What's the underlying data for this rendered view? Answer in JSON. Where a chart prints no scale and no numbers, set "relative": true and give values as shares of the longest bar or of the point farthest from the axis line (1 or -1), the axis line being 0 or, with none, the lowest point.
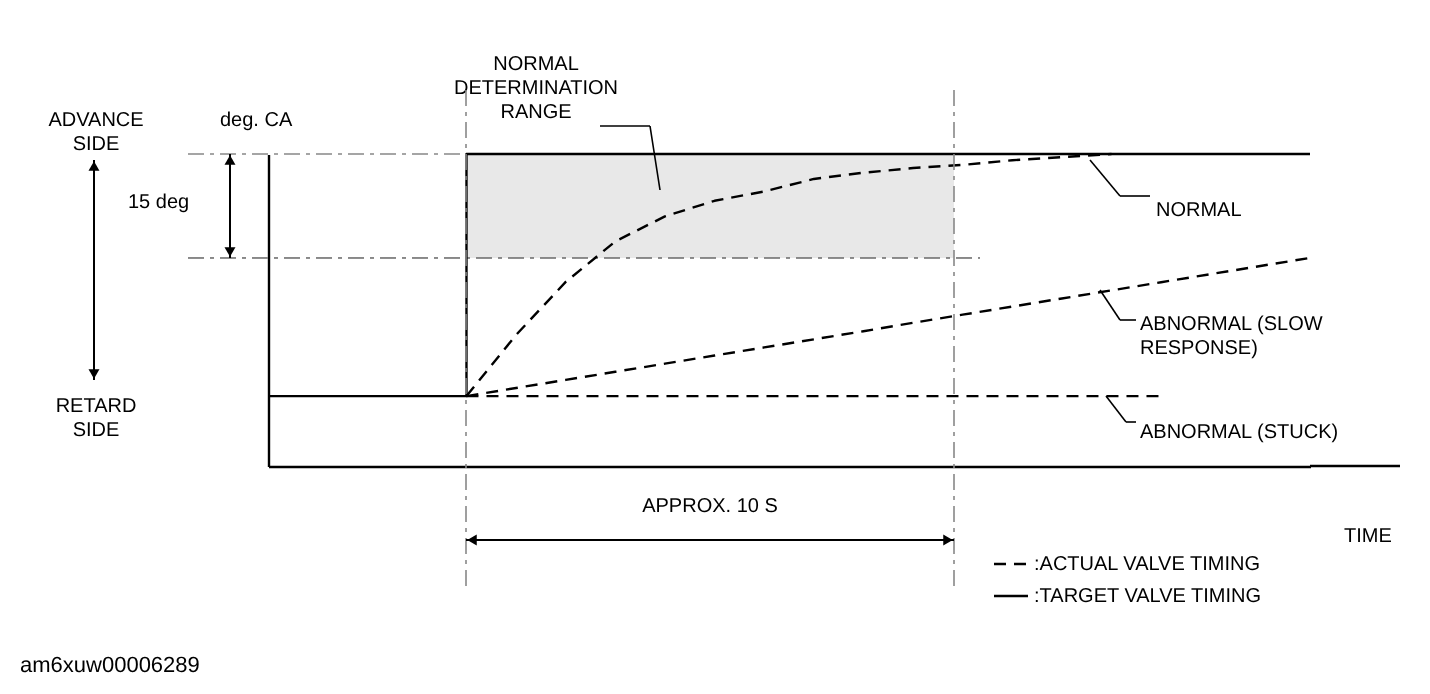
{
  "chart_data": {
    "type": "line",
    "relative": true,
    "xlabel": "TIME",
    "ylabel": "deg. CA",
    "legend": "bottom right",
    "categories": [
      null,
      null,
      null,
      null,
      null,
      null,
      null,
      null,
      null,
      null,
      null,
      null,
      null,
      null,
      null,
      null,
      null,
      null,
      null,
      null,
      null,
      null
    ],
    "series": [
      {
        "name": ":ACTUAL VALVE TIMING",
        "color": "#000000",
        "line_style": "dashed",
        "values": [
          null,
          null,
          null,
          null,
          0.224,
          0.42,
          0.59,
          0.72,
          0.8,
          0.85,
          0.88,
          0.92,
          0.94,
          0.955,
          0.965,
          0.98,
          0.99,
          1,
          null,
          null,
          null,
          null
        ]
      },
      {
        "color": "#000000",
        "line_style": "dashed",
        "values": [
          null,
          null,
          null,
          null,
          0.224,
          0.25,
          0.276,
          0.302,
          0.328,
          0.354,
          0.38,
          0.406,
          0.432,
          0.459,
          0.485,
          0.511,
          0.537,
          0.563,
          0.589,
          0.615,
          0.641,
          0.667
        ]
      },
      {
        "color": "#000000",
        "line_style": "dashed",
        "values": [
          null,
          null,
          null,
          null,
          0.224,
          0.224,
          0.224,
          0.224,
          0.224,
          0.224,
          0.224,
          0.224,
          0.224,
          0.224,
          0.224,
          0.224,
          0.224,
          0.224,
          0.224,
          null,
          null,
          null
        ]
      },
      {
        "name": ":TARGET VALVE TIMING",
        "type": "step",
        "color": "#000000",
        "line_style": "solid",
        "values": [
          0.224,
          0.224,
          0.224,
          0.224,
          1,
          1,
          1,
          1,
          1,
          1,
          1,
          1,
          1,
          1,
          1,
          1,
          1,
          1,
          1,
          1,
          1,
          1
        ]
      }
    ],
    "bands": [
      {
        "axis": "y",
        "from": 0.667,
        "to": 1,
        "color": "#e8e8e8"
      }
    ],
    "ref_lines": [
      {
        "axis": "y",
        "value": 0.667,
        "color": "#888888",
        "line_style": "dashed"
      }
    ],
    "annotations": [
      "ADVANCE SIDE",
      "RETARD SIDE",
      "NORMAL DETERMINATION RANGE",
      "NORMAL",
      "ABNORMAL (SLOW RESPONSE)",
      "ABNORMAL (STUCK)",
      "am6xuw00006289",
      "15 deg",
      "APPROX. 10 S"
    ]
  }
}
